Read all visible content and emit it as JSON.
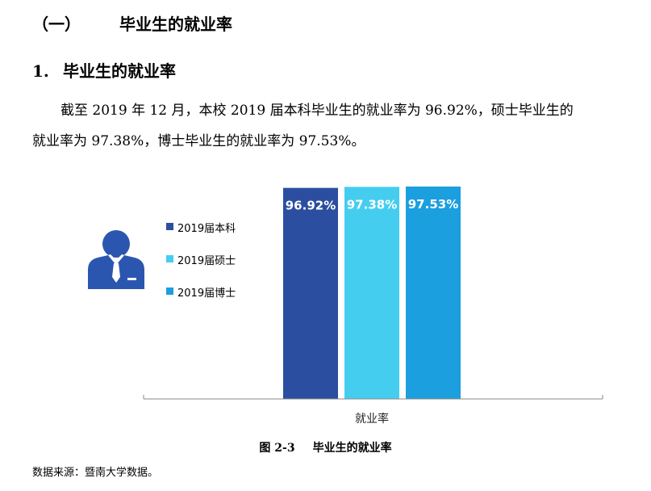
{
  "section": {
    "number": "（一）",
    "title": "毕业生的就业率"
  },
  "subsection": {
    "number": "1.",
    "title": "毕业生的就业率"
  },
  "paragraph": {
    "line1": "截至 2019 年 12 月，本校 2019 届本科毕业生的就业率为 96.92%，硕士毕业生的",
    "line2": "就业率为 97.38%，博士毕业生的就业率为 97.53%。"
  },
  "icon": "person-with-tie-icon",
  "chart_data": {
    "type": "bar",
    "categories": [
      "就业率"
    ],
    "series": [
      {
        "name": "2019届本科",
        "values": [
          96.92
        ],
        "label": "96.92%",
        "color": "#2b4ea0"
      },
      {
        "name": "2019届硕士",
        "values": [
          97.38
        ],
        "label": "97.38%",
        "color": "#45cdf0"
      },
      {
        "name": "2019届博士",
        "values": [
          97.53
        ],
        "label": "97.53%",
        "color": "#1b9fdf"
      }
    ],
    "xlabel": "就业率",
    "legend_position": "left",
    "grid": false
  },
  "caption": {
    "figure_number": "图 2-3",
    "title": "毕业生的就业率"
  },
  "source": "数据来源：暨南大学数据。"
}
